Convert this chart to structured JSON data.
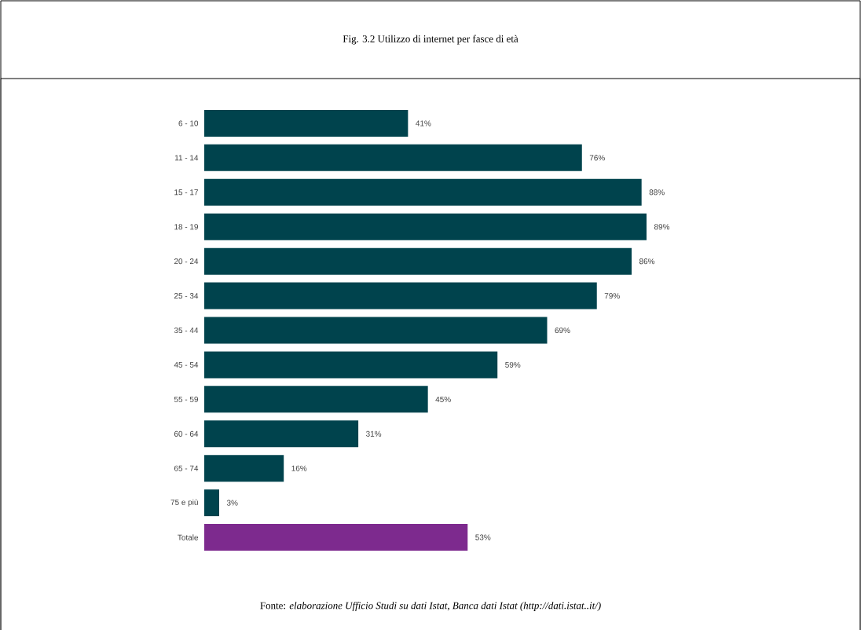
{
  "chart_data": {
    "type": "bar",
    "orientation": "horizontal",
    "title": "Fig. 3.2 Utilizzo di internet per fasce di età",
    "categories": [
      "6 - 10",
      "11 - 14",
      "15 - 17",
      "18 - 19",
      "20 - 24",
      "25 - 34",
      "35 - 44",
      "45 - 54",
      "55 - 59",
      "60 - 64",
      "65 - 74",
      "75 e più",
      "Totale"
    ],
    "values": [
      41,
      76,
      88,
      89,
      86,
      79,
      69,
      59,
      45,
      31,
      16,
      3,
      53
    ],
    "colors": [
      "#00434d",
      "#00434d",
      "#00434d",
      "#00434d",
      "#00434d",
      "#00434d",
      "#00434d",
      "#00434d",
      "#00434d",
      "#00434d",
      "#00434d",
      "#00434d",
      "#7d2a8e"
    ],
    "value_labels": [
      "41%",
      "76%",
      "88%",
      "89%",
      "86%",
      "79%",
      "69%",
      "59%",
      "45%",
      "31%",
      "16%",
      "3%",
      "53%"
    ],
    "annotations": [
      "Fonte: *elaborazione Ufficio Studi su dati Istat, Banca dati Istat (http://dati.istat..it/)*"
    ]
  }
}
